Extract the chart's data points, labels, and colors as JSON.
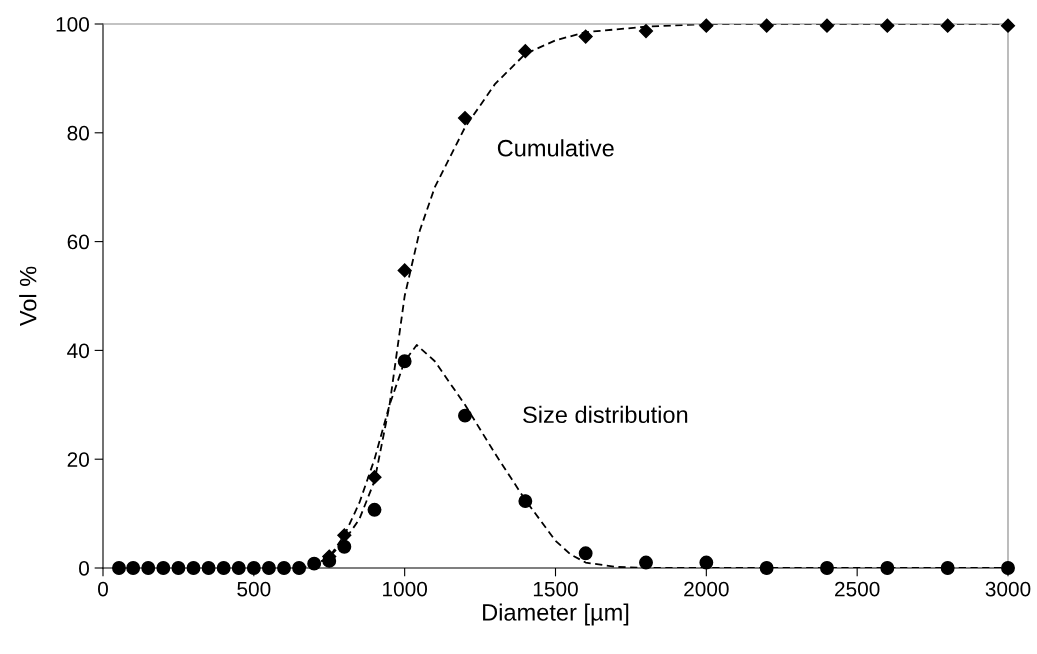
{
  "chart_data": {
    "type": "scatter",
    "xlabel": "Diameter [µm]",
    "ylabel": "Vol %",
    "xlim": [
      0,
      3000
    ],
    "ylim": [
      0,
      100
    ],
    "xticks": [
      0,
      500,
      1000,
      1500,
      2000,
      2500,
      3000
    ],
    "yticks": [
      0,
      20,
      40,
      60,
      80,
      100
    ],
    "grid": false,
    "series": [
      {
        "type": "line",
        "color": "#000000",
        "line_style": "dashed",
        "marker": "none",
        "x": [
          650,
          700,
          750,
          800,
          850,
          900,
          950,
          1000,
          1050,
          1100,
          1200,
          1300,
          1400,
          1500,
          1600,
          1800,
          2000,
          3000
        ],
        "values": [
          0,
          0.5,
          2,
          5,
          9,
          16,
          30,
          50,
          62,
          70,
          81,
          89,
          94.5,
          97,
          98.5,
          99.5,
          100,
          100
        ]
      },
      {
        "type": "line",
        "color": "#000000",
        "line_style": "dashed",
        "marker": "none",
        "x": [
          650,
          700,
          750,
          800,
          850,
          900,
          950,
          1000,
          1040,
          1100,
          1200,
          1300,
          1400,
          1500,
          1550,
          1600,
          1700,
          1800,
          3000
        ],
        "values": [
          0,
          0.5,
          2,
          6,
          12,
          20,
          30,
          38,
          41,
          38,
          30,
          21,
          12.5,
          5,
          2.5,
          1,
          0.2,
          0,
          0
        ]
      },
      {
        "color": "#000000",
        "marker": "diamond",
        "x": [
          750,
          800,
          900,
          1000,
          1200,
          1400,
          1600,
          1800,
          2000,
          2200,
          2400,
          2600,
          2800,
          3000
        ],
        "values": [
          2.1,
          6,
          16.7,
          54.7,
          82.7,
          95,
          97.7,
          98.7,
          99.7,
          99.7,
          99.7,
          99.7,
          99.7,
          99.7
        ]
      },
      {
        "color": "#000000",
        "marker": "circle",
        "x": [
          53,
          100,
          150,
          200,
          250,
          300,
          350,
          400,
          450,
          500,
          550,
          600,
          650,
          700,
          750,
          800,
          900,
          1000,
          1200,
          1400,
          1600,
          1800,
          2000,
          2200,
          2400,
          2600,
          2800,
          3000
        ],
        "values": [
          0,
          0,
          0,
          0,
          0,
          0,
          0,
          0,
          0,
          0,
          0,
          0,
          0,
          0.8,
          1.3,
          3.9,
          10.7,
          38,
          28,
          12.3,
          2.7,
          1,
          1,
          0,
          0,
          0,
          0,
          0
        ]
      }
    ],
    "annotations": [
      "Cumulative",
      "Size distribution"
    ]
  }
}
